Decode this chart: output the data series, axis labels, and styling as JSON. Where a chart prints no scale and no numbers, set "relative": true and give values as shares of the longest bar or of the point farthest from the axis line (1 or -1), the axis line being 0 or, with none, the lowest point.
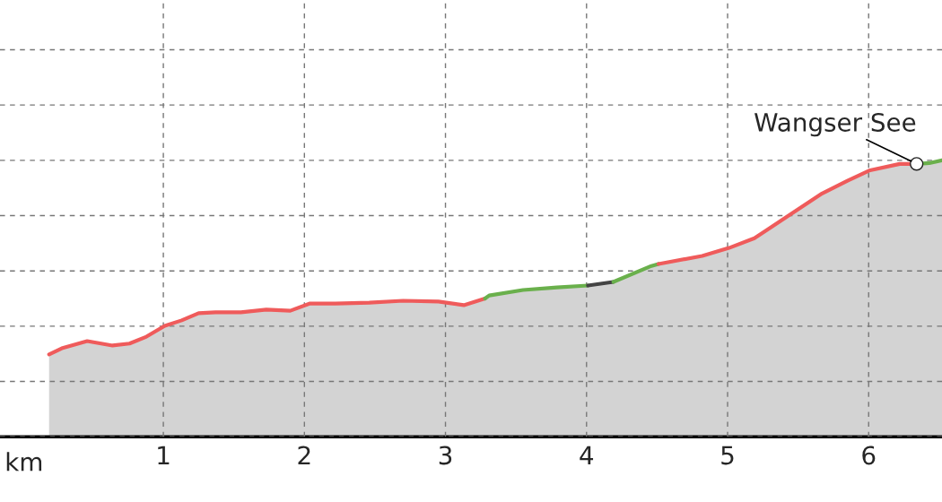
{
  "chart_data": {
    "type": "area",
    "relative": true,
    "xlabel": "km",
    "xlim": [
      -0.158,
      6.52
    ],
    "xticks": [
      1,
      2,
      3,
      4,
      5,
      6
    ],
    "grid": true,
    "legend": false,
    "series": [
      {
        "color": "#d3d3d3",
        "x": [
          0.19,
          0.28,
          0.46,
          0.64,
          0.76,
          0.88,
          1.01,
          1.13,
          1.25,
          1.37,
          1.55,
          1.73,
          1.9,
          2.04,
          2.22,
          2.46,
          2.7,
          2.95,
          3.13,
          3.28,
          3.31,
          3.55,
          3.79,
          4.01,
          4.19,
          4.46,
          4.51,
          4.82,
          5.01,
          5.19,
          5.43,
          5.67,
          5.85,
          6.01,
          6.22,
          6.34,
          6.43,
          6.52
        ],
        "values": [
          0.298,
          0.32,
          0.346,
          0.33,
          0.337,
          0.362,
          0.401,
          0.421,
          0.447,
          0.45,
          0.45,
          0.46,
          0.456,
          0.482,
          0.482,
          0.485,
          0.492,
          0.489,
          0.476,
          0.5,
          0.511,
          0.531,
          0.54,
          0.547,
          0.56,
          0.618,
          0.625,
          0.654,
          0.683,
          0.718,
          0.799,
          0.88,
          0.926,
          0.964,
          0.987,
          0.987,
          0.99,
          1.0
        ],
        "colors": [
          "#ef5b5b",
          "#ef5b5b",
          "#ef5b5b",
          "#ef5b5b",
          "#ef5b5b",
          "#ef5b5b",
          "#ef5b5b",
          "#ef5b5b",
          "#ef5b5b",
          "#ef5b5b",
          "#ef5b5b",
          "#ef5b5b",
          "#ef5b5b",
          "#ef5b5b",
          "#ef5b5b",
          "#ef5b5b",
          "#ef5b5b",
          "#ef5b5b",
          "#ef5b5b",
          "#6ab04c",
          "#6ab04c",
          "#6ab04c",
          "#6ab04c",
          "#444444",
          "#6ab04c",
          "#6ab04c",
          "#ef5b5b",
          "#ef5b5b",
          "#ef5b5b",
          "#ef5b5b",
          "#ef5b5b",
          "#ef5b5b",
          "#ef5b5b",
          "#ef5b5b",
          "#ef5b5b",
          "#6ab04c",
          "#6ab04c",
          "#6ab04c"
        ]
      }
    ],
    "annotations": [
      {
        "text": "Wangser See",
        "x": 6.34,
        "y": 0.987
      }
    ]
  }
}
